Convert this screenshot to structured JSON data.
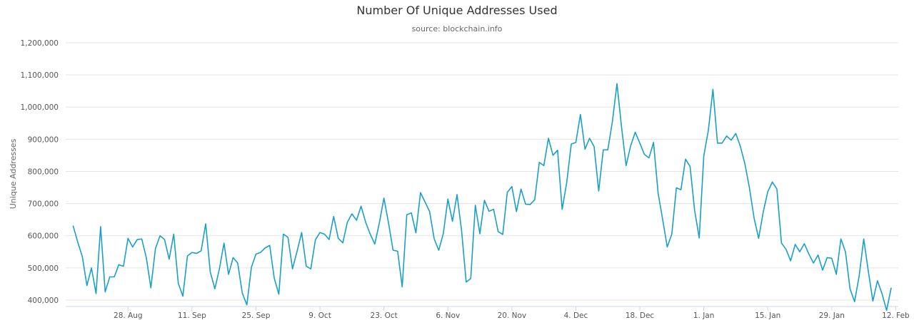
{
  "chart_data": {
    "type": "line",
    "title": "Number Of Unique Addresses Used",
    "subtitle": "source: blockchain.info",
    "ylabel": "Unique Addresses",
    "xlabel": "",
    "ylim": [
      380000,
      1200000
    ],
    "y_ticks": [
      {
        "value": 400000,
        "label": "400,000"
      },
      {
        "value": 500000,
        "label": "500,000"
      },
      {
        "value": 600000,
        "label": "600,000"
      },
      {
        "value": 700000,
        "label": "700,000"
      },
      {
        "value": 800000,
        "label": "800,000"
      },
      {
        "value": 900000,
        "label": "900,000"
      },
      {
        "value": 1000000,
        "label": "1,000,000"
      },
      {
        "value": 1100000,
        "label": "1,100,000"
      },
      {
        "value": 1200000,
        "label": "1,200,000"
      }
    ],
    "x_start": "2016-08-16",
    "x_ticks": [
      {
        "date": "2016-08-28",
        "label": "28. Aug"
      },
      {
        "date": "2016-09-11",
        "label": "11. Sep"
      },
      {
        "date": "2016-09-25",
        "label": "25. Sep"
      },
      {
        "date": "2016-10-09",
        "label": "9. Oct"
      },
      {
        "date": "2016-10-23",
        "label": "23. Oct"
      },
      {
        "date": "2016-11-06",
        "label": "6. Nov"
      },
      {
        "date": "2016-11-20",
        "label": "20. Nov"
      },
      {
        "date": "2016-12-04",
        "label": "4. Dec"
      },
      {
        "date": "2016-12-18",
        "label": "18. Dec"
      },
      {
        "date": "2017-01-01",
        "label": "1. Jan"
      },
      {
        "date": "2017-01-15",
        "label": "15. Jan"
      },
      {
        "date": "2017-01-29",
        "label": "29. Jan"
      },
      {
        "date": "2017-02-12",
        "label": "12. Feb"
      }
    ],
    "grid": true,
    "legend": false,
    "color": "#1a9fc6",
    "series": [
      {
        "name": "",
        "values": [
          630000,
          580000,
          535000,
          445000,
          500000,
          420000,
          628000,
          425000,
          472000,
          472000,
          510000,
          505000,
          592000,
          565000,
          588000,
          590000,
          532000,
          438000,
          560000,
          600000,
          588000,
          527000,
          605000,
          452000,
          412000,
          537000,
          548000,
          545000,
          553000,
          637000,
          487000,
          435000,
          497000,
          577000,
          480000,
          532000,
          515000,
          422000,
          385000,
          502000,
          543000,
          548000,
          562000,
          570000,
          468000,
          418000,
          605000,
          595000,
          497000,
          552000,
          610000,
          505000,
          497000,
          587000,
          610000,
          605000,
          588000,
          660000,
          592000,
          578000,
          642000,
          668000,
          648000,
          692000,
          642000,
          605000,
          574000,
          640000,
          717000,
          640000,
          555000,
          552000,
          441000,
          665000,
          671000,
          609000,
          734000,
          705000,
          675000,
          590000,
          555000,
          607000,
          714000,
          645000,
          728000,
          615000,
          456000,
          467000,
          695000,
          606000,
          710000,
          676000,
          682000,
          613000,
          604000,
          735000,
          753000,
          675000,
          745000,
          698000,
          697000,
          712000,
          828000,
          818000,
          903000,
          850000,
          866000,
          682000,
          765000,
          885000,
          890000,
          977000,
          869000,
          903000,
          877000,
          739000,
          867000,
          867000,
          955000,
          1073000,
          938000,
          818000,
          880000,
          922000,
          888000,
          853000,
          842000,
          890000,
          733000,
          650000,
          565000,
          605000,
          749000,
          743000,
          838000,
          815000,
          678000,
          593000,
          848000,
          928000,
          1055000,
          888000,
          888000,
          910000,
          897000,
          918000,
          878000,
          823000,
          748000,
          655000,
          592000,
          673000,
          737000,
          767000,
          745000,
          577000,
          558000,
          522000,
          573000,
          550000,
          575000,
          543000,
          515000,
          540000,
          493000,
          532000,
          530000,
          480000,
          590000,
          550000,
          435000,
          395000,
          475000,
          590000,
          490000,
          397000,
          460000,
          420000,
          368000,
          437000
        ]
      }
    ]
  }
}
